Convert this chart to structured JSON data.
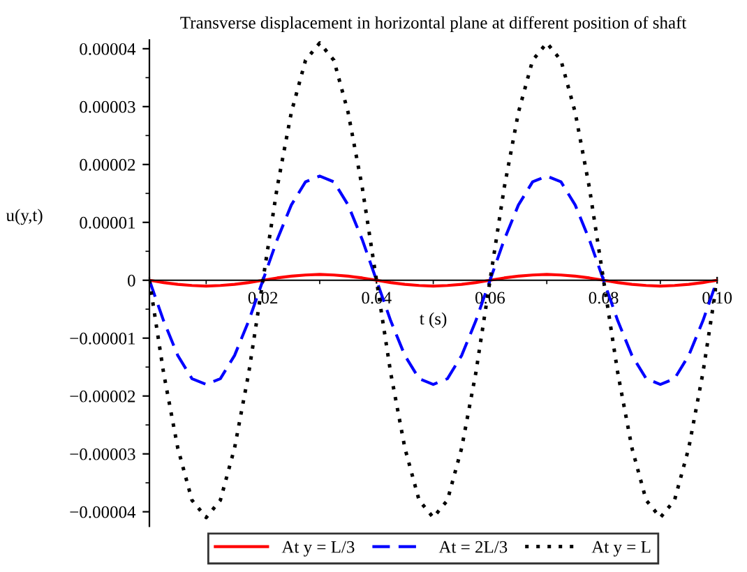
{
  "chart_data": {
    "type": "line",
    "title": "Transverse displacement in horizontal plane at different position of shaft",
    "xlabel": "t (s)",
    "ylabel": "u(y,t)",
    "x": [
      0,
      0.0025,
      0.005,
      0.0075,
      0.01,
      0.0125,
      0.015,
      0.0175,
      0.02,
      0.0225,
      0.025,
      0.0275,
      0.03,
      0.0325,
      0.035,
      0.0375,
      0.04,
      0.0425,
      0.045,
      0.0475,
      0.05,
      0.0525,
      0.055,
      0.0575,
      0.06,
      0.0625,
      0.065,
      0.0675,
      0.07,
      0.0725,
      0.075,
      0.0775,
      0.08,
      0.0825,
      0.085,
      0.0875,
      0.09,
      0.0925,
      0.095,
      0.0975,
      0.1
    ],
    "series": [
      {
        "name": "At y = L/3",
        "color": "#ff0000",
        "line_style": "solid",
        "values": [
          0,
          -4e-07,
          -7e-07,
          -9e-07,
          -1e-06,
          -9e-07,
          -7e-07,
          -4e-07,
          0,
          4e-07,
          7e-07,
          9e-07,
          1e-06,
          9e-07,
          7e-07,
          4e-07,
          0,
          -4e-07,
          -7e-07,
          -9e-07,
          -1e-06,
          -9e-07,
          -7e-07,
          -4e-07,
          0,
          4e-07,
          7e-07,
          9e-07,
          1e-06,
          9e-07,
          7e-07,
          4e-07,
          0,
          -4e-07,
          -7e-07,
          -9e-07,
          -1e-06,
          -9e-07,
          -7e-07,
          -4e-07,
          0
        ]
      },
      {
        "name": "At = 2L/3",
        "color": "#0000ff",
        "line_style": "dashed",
        "values": [
          0,
          -7e-06,
          -1.3e-05,
          -1.7e-05,
          -1.8e-05,
          -1.7e-05,
          -1.3e-05,
          -7e-06,
          0,
          7e-06,
          1.3e-05,
          1.7e-05,
          1.8e-05,
          1.7e-05,
          1.3e-05,
          7e-06,
          0,
          -7e-06,
          -1.3e-05,
          -1.7e-05,
          -1.8e-05,
          -1.7e-05,
          -1.3e-05,
          -7e-06,
          0,
          7e-06,
          1.3e-05,
          1.7e-05,
          1.8e-05,
          1.7e-05,
          1.3e-05,
          7e-06,
          0,
          -7e-06,
          -1.3e-05,
          -1.7e-05,
          -1.8e-05,
          -1.7e-05,
          -1.3e-05,
          -7e-06,
          0
        ]
      },
      {
        "name": "At y = L",
        "color": "#000000",
        "line_style": "dotted",
        "values": [
          0,
          -1.6e-05,
          -2.9e-05,
          -3.8e-05,
          -4.1e-05,
          -3.8e-05,
          -2.9e-05,
          -1.6e-05,
          0,
          1.6e-05,
          2.9e-05,
          3.8e-05,
          4.1e-05,
          3.8e-05,
          2.9e-05,
          1.6e-05,
          0,
          -1.6e-05,
          -2.9e-05,
          -3.8e-05,
          -4.1e-05,
          -3.8e-05,
          -2.9e-05,
          -1.6e-05,
          0,
          1.6e-05,
          2.9e-05,
          3.8e-05,
          4.1e-05,
          3.8e-05,
          2.9e-05,
          1.6e-05,
          0,
          -1.6e-05,
          -2.9e-05,
          -3.8e-05,
          -4.1e-05,
          -3.8e-05,
          -2.9e-05,
          -1.6e-05,
          0
        ]
      }
    ],
    "xlim": [
      0,
      0.1
    ],
    "xticks": [
      {
        "value": 0,
        "label": null
      },
      0.02,
      0.04,
      0.06,
      0.08,
      {
        "value": 0.1,
        "label": "0.10"
      }
    ],
    "ylim": [
      -4.25e-05,
      4.15e-05
    ],
    "yticks": [
      {
        "value": -4e-05,
        "label": "−0.00004"
      },
      {
        "value": -3e-05,
        "label": "−0.00003"
      },
      {
        "value": -2e-05,
        "label": "−0.00002"
      },
      {
        "value": -1e-05,
        "label": "−0.00001"
      },
      0,
      {
        "value": 1e-05,
        "label": "0.00001"
      },
      {
        "value": 2e-05,
        "label": "0.00002"
      },
      {
        "value": 3e-05,
        "label": "0.00003"
      },
      {
        "value": 4e-05,
        "label": "0.00004"
      }
    ],
    "legend": "bottom",
    "grid": false
  }
}
